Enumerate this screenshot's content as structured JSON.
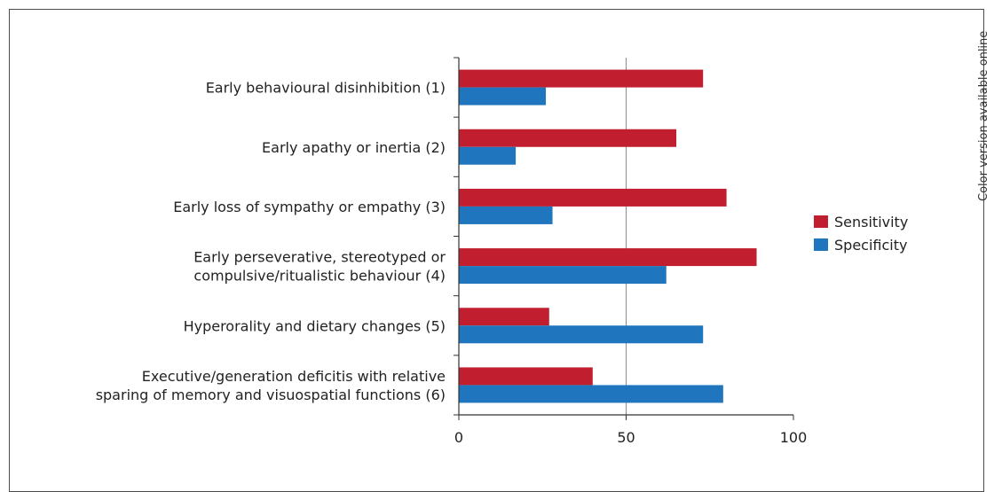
{
  "side_note": "Color version available online",
  "chart_data": {
    "type": "bar",
    "orientation": "horizontal",
    "categories": [
      [
        "Early behavioural disinhibition (1)"
      ],
      [
        "Early apathy or inertia (2)"
      ],
      [
        "Early loss of sympathy or empathy (3)"
      ],
      [
        "Early perseverative, stereotyped or",
        "compulsive/ritualistic behaviour (4)"
      ],
      [
        "Hyperorality and dietary changes (5)"
      ],
      [
        "Executive/generation deficitis with relative",
        "sparing of memory and visuospatial functions (6)"
      ]
    ],
    "series": [
      {
        "name": "Sensitivity",
        "color": "#c11f2f",
        "values": [
          73,
          65,
          80,
          89,
          27,
          40
        ]
      },
      {
        "name": "Specificity",
        "color": "#1f75be",
        "values": [
          26,
          17,
          28,
          62,
          73,
          79
        ]
      }
    ],
    "xlim": [
      0,
      100
    ],
    "xticks": [
      0,
      50,
      100
    ],
    "reference_line": 50,
    "legend_position": "right"
  }
}
